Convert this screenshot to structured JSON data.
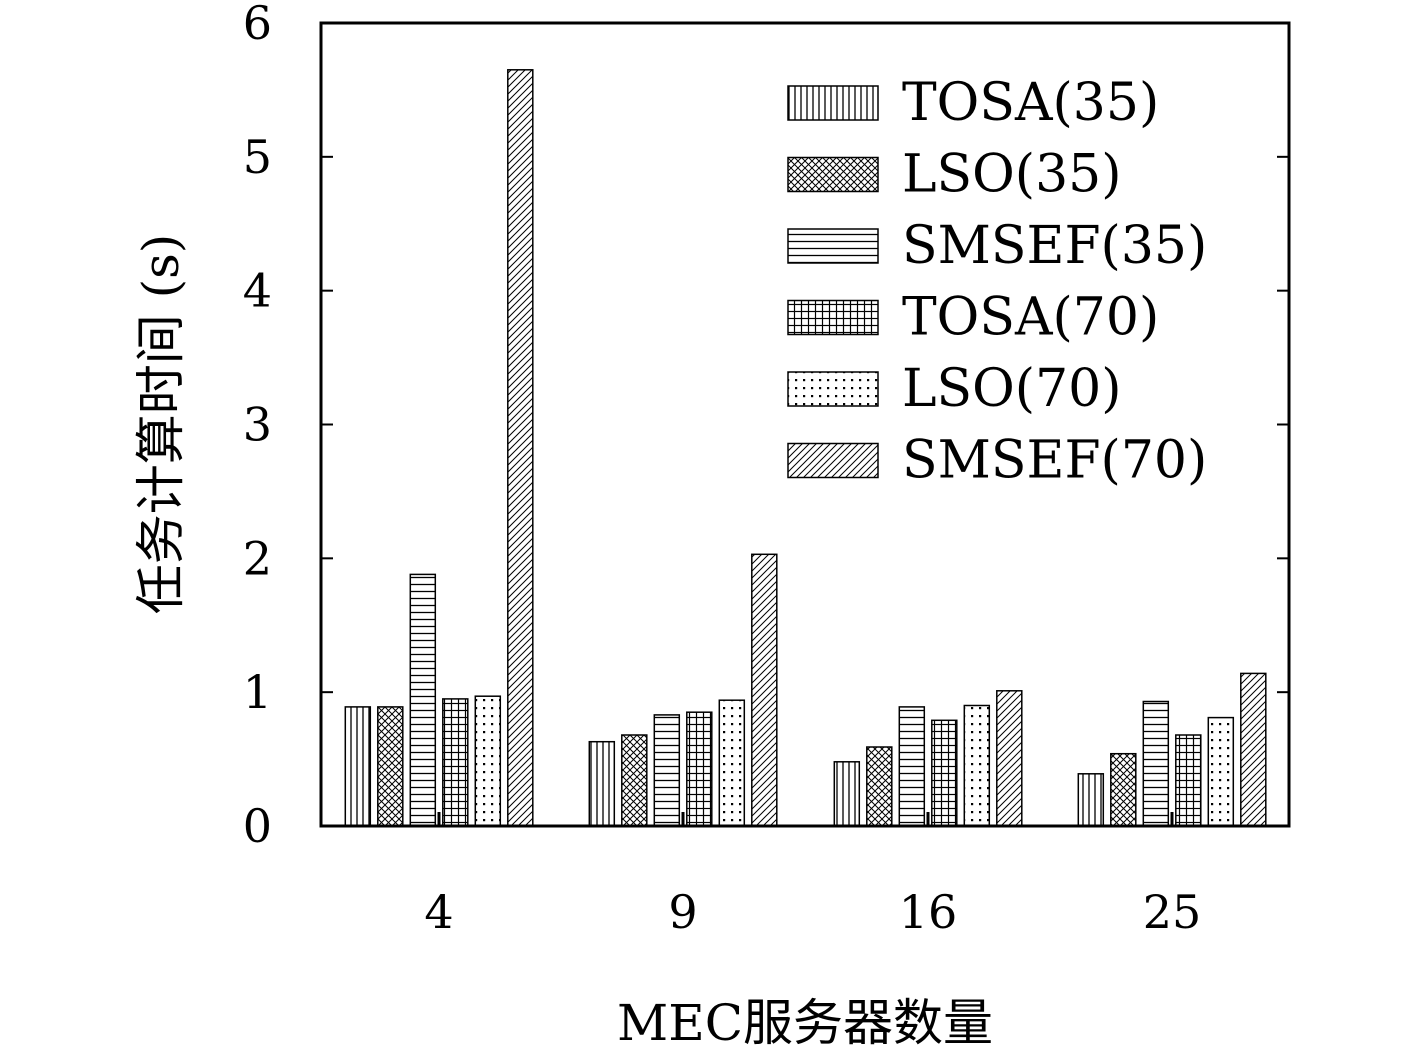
{
  "chart_data": {
    "type": "bar",
    "title": "",
    "xlabel": "MEC服务器数量",
    "ylabel": "任务计算时间 (s)",
    "categories": [
      "4",
      "9",
      "16",
      "25"
    ],
    "ylim": [
      0,
      6
    ],
    "yticks": [
      "0",
      "1",
      "2",
      "3",
      "4",
      "5",
      "6"
    ],
    "grid": false,
    "legend_position": "top-right",
    "series": [
      {
        "name": "TOSA(35)",
        "pattern": "vertical-lines",
        "values": [
          0.89,
          0.63,
          0.48,
          0.39
        ]
      },
      {
        "name": "LSO(35)",
        "pattern": "crosshatch",
        "values": [
          0.89,
          0.68,
          0.59,
          0.54
        ]
      },
      {
        "name": "SMSEF(35)",
        "pattern": "horizontal-lines",
        "values": [
          1.88,
          0.83,
          0.89,
          0.93
        ]
      },
      {
        "name": "TOSA(70)",
        "pattern": "grid",
        "values": [
          0.95,
          0.85,
          0.79,
          0.68
        ]
      },
      {
        "name": "LSO(70)",
        "pattern": "dots",
        "values": [
          0.97,
          0.94,
          0.9,
          0.81
        ]
      },
      {
        "name": "SMSEF(70)",
        "pattern": "diagonal-lines",
        "values": [
          5.65,
          2.03,
          1.01,
          1.14
        ]
      }
    ]
  }
}
